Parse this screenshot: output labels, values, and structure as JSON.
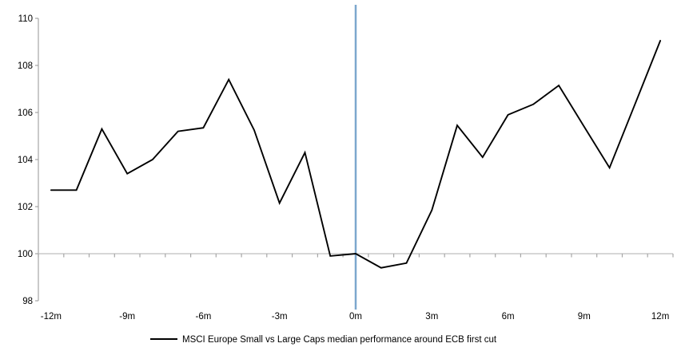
{
  "chart_data": {
    "type": "line",
    "title": "",
    "x": [
      -12,
      -11,
      -10,
      -9,
      -8,
      -7,
      -6,
      -5,
      -4,
      -3,
      -2,
      -1,
      0,
      1,
      2,
      3,
      4,
      5,
      6,
      7,
      8,
      9,
      10,
      11,
      12
    ],
    "series": [
      {
        "name": "MSCI Europe Small vs Large Caps median performance around ECB first cut",
        "color": "#000000",
        "values": [
          102.7,
          102.7,
          105.3,
          103.4,
          104.0,
          105.2,
          105.35,
          107.4,
          105.25,
          102.15,
          104.3,
          99.9,
          100.0,
          99.4,
          99.6,
          101.85,
          105.45,
          104.1,
          105.9,
          106.35,
          107.15,
          105.4,
          103.65,
          106.35,
          109.05
        ]
      }
    ],
    "x_tick_labels": [
      "-12m",
      "-9m",
      "-6m",
      "-3m",
      "0m",
      "3m",
      "6m",
      "9m",
      "12m"
    ],
    "x_tick_months": [
      -12,
      -9,
      -6,
      -3,
      0,
      3,
      6,
      9,
      12
    ],
    "y_tick_labels": [
      "110",
      "108",
      "106",
      "104",
      "102",
      "100",
      "98"
    ],
    "ylim": [
      98,
      110
    ],
    "xlim_months": [
      -12.5,
      12.5
    ],
    "baseline_value": 100,
    "grid": "baseline-only",
    "event_line": {
      "x": 0,
      "color": "#7DA7CE"
    },
    "axis_color": "#A6A6A6",
    "baseline_color": "#BFBFBF",
    "legend_position": "bottom-center"
  }
}
